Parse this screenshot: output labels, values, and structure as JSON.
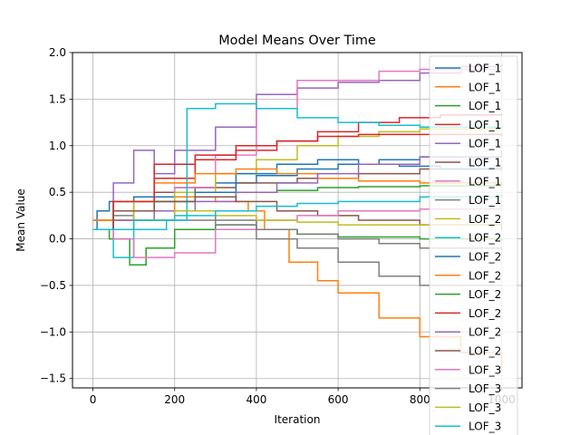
{
  "chart_data": {
    "type": "line",
    "title": "Model Means Over Time",
    "xlabel": "Iteration",
    "ylabel": "Mean Value",
    "xlim": [
      -50,
      1050
    ],
    "ylim": [
      -1.6,
      2.0
    ],
    "grid": true,
    "legend_position": "top-right",
    "x_ticks": [
      0,
      200,
      400,
      600,
      800,
      1000
    ],
    "x_tick_labels": [
      "0",
      "200",
      "400",
      "600",
      "800",
      "1000"
    ],
    "y_ticks": [
      -1.5,
      -1.0,
      -0.5,
      0.0,
      0.5,
      1.0,
      1.5,
      2.0
    ],
    "y_tick_labels": [
      "−1.5",
      "−1.0",
      "−0.5",
      "0.0",
      "0.5",
      "1.0",
      "1.5",
      "2.0"
    ],
    "series": [
      {
        "name": "LOF_1",
        "color": "#1f77b4",
        "points": [
          [
            0,
            0.1
          ],
          [
            10,
            0.3
          ],
          [
            40,
            0.4
          ],
          [
            100,
            0.45
          ],
          [
            200,
            0.55
          ],
          [
            300,
            0.6
          ],
          [
            400,
            0.68
          ],
          [
            500,
            0.75
          ],
          [
            600,
            0.8
          ],
          [
            700,
            0.85
          ],
          [
            800,
            0.88
          ],
          [
            1000,
            0.9
          ]
        ]
      },
      {
        "name": "LOF_1",
        "color": "#ff7f0e",
        "points": [
          [
            0,
            0.1
          ],
          [
            50,
            0.2
          ],
          [
            100,
            0.3
          ],
          [
            200,
            0.45
          ],
          [
            300,
            0.4
          ],
          [
            380,
            0.3
          ],
          [
            420,
            0.1
          ],
          [
            480,
            -0.25
          ],
          [
            550,
            -0.45
          ],
          [
            600,
            -0.58
          ],
          [
            700,
            -0.85
          ],
          [
            800,
            -1.05
          ],
          [
            900,
            -1.22
          ],
          [
            1000,
            -1.42
          ]
        ]
      },
      {
        "name": "LOF_1",
        "color": "#2ca02c",
        "points": [
          [
            0,
            0.1
          ],
          [
            40,
            0.0
          ],
          [
            90,
            -0.28
          ],
          [
            130,
            -0.1
          ],
          [
            200,
            0.1
          ],
          [
            300,
            0.15
          ],
          [
            400,
            0.1
          ],
          [
            500,
            0.05
          ],
          [
            600,
            0.02
          ],
          [
            800,
            0.0
          ],
          [
            1000,
            -0.02
          ]
        ]
      },
      {
        "name": "LOF_1",
        "color": "#d62728",
        "points": [
          [
            0,
            0.2
          ],
          [
            50,
            0.4
          ],
          [
            150,
            0.65
          ],
          [
            250,
            0.85
          ],
          [
            350,
            0.95
          ],
          [
            450,
            1.05
          ],
          [
            550,
            1.15
          ],
          [
            650,
            1.25
          ],
          [
            750,
            1.3
          ],
          [
            850,
            1.33
          ],
          [
            1000,
            1.35
          ]
        ]
      },
      {
        "name": "LOF_1",
        "color": "#9467bd",
        "points": [
          [
            0,
            0.1
          ],
          [
            50,
            0.6
          ],
          [
            100,
            0.95
          ],
          [
            150,
            0.7
          ],
          [
            200,
            0.95
          ],
          [
            300,
            1.2
          ],
          [
            400,
            1.55
          ],
          [
            500,
            1.62
          ],
          [
            600,
            1.68
          ],
          [
            700,
            1.7
          ],
          [
            800,
            1.78
          ],
          [
            900,
            1.85
          ],
          [
            1000,
            1.88
          ]
        ]
      },
      {
        "name": "LOF_1",
        "color": "#8c564b",
        "points": [
          [
            0,
            0.1
          ],
          [
            50,
            0.3
          ],
          [
            150,
            0.5
          ],
          [
            250,
            0.55
          ],
          [
            350,
            0.6
          ],
          [
            500,
            0.65
          ],
          [
            650,
            0.7
          ],
          [
            800,
            0.75
          ],
          [
            1000,
            0.78
          ]
        ]
      },
      {
        "name": "LOF_1",
        "color": "#e377c2",
        "points": [
          [
            0,
            0.1
          ],
          [
            50,
            0.2
          ],
          [
            100,
            0.4
          ],
          [
            200,
            0.55
          ],
          [
            300,
            0.9
          ],
          [
            400,
            1.4
          ],
          [
            500,
            1.7
          ],
          [
            600,
            1.7
          ],
          [
            700,
            1.8
          ],
          [
            800,
            1.82
          ],
          [
            1000,
            1.82
          ]
        ]
      },
      {
        "name": "LOF_1",
        "color": "#7f7f7f",
        "points": [
          [
            0,
            0.1
          ],
          [
            50,
            0.25
          ],
          [
            100,
            0.2
          ],
          [
            200,
            0.2
          ],
          [
            300,
            0.15
          ],
          [
            400,
            0.1
          ],
          [
            500,
            0.05
          ],
          [
            600,
            0.0
          ],
          [
            700,
            -0.05
          ],
          [
            800,
            -0.1
          ],
          [
            1000,
            -0.12
          ]
        ]
      },
      {
        "name": "LOF_2",
        "color": "#bcbd22",
        "points": [
          [
            0,
            0.2
          ],
          [
            100,
            0.4
          ],
          [
            200,
            0.5
          ],
          [
            300,
            0.7
          ],
          [
            400,
            0.85
          ],
          [
            500,
            1.0
          ],
          [
            600,
            1.1
          ],
          [
            700,
            1.15
          ],
          [
            800,
            1.18
          ],
          [
            1000,
            1.2
          ]
        ]
      },
      {
        "name": "LOF_2",
        "color": "#17becf",
        "points": [
          [
            0,
            0.1
          ],
          [
            50,
            -0.2
          ],
          [
            100,
            0.1
          ],
          [
            180,
            0.2
          ],
          [
            230,
            1.4
          ],
          [
            300,
            1.45
          ],
          [
            400,
            1.4
          ],
          [
            500,
            1.3
          ],
          [
            600,
            1.25
          ],
          [
            700,
            1.22
          ],
          [
            800,
            1.2
          ],
          [
            1000,
            1.18
          ]
        ]
      },
      {
        "name": "LOF_2",
        "color": "#1f77b4",
        "points": [
          [
            0,
            0.1
          ],
          [
            50,
            0.3
          ],
          [
            150,
            0.4
          ],
          [
            250,
            0.5
          ],
          [
            350,
            0.7
          ],
          [
            450,
            0.8
          ],
          [
            550,
            0.85
          ],
          [
            650,
            0.8
          ],
          [
            750,
            0.78
          ],
          [
            850,
            0.75
          ],
          [
            1000,
            0.75
          ]
        ]
      },
      {
        "name": "LOF_2",
        "color": "#ff7f0e",
        "points": [
          [
            0,
            0.2
          ],
          [
            50,
            0.4
          ],
          [
            150,
            0.6
          ],
          [
            250,
            0.7
          ],
          [
            350,
            0.75
          ],
          [
            450,
            0.7
          ],
          [
            550,
            0.65
          ],
          [
            650,
            0.62
          ],
          [
            800,
            0.6
          ],
          [
            1000,
            0.58
          ]
        ]
      },
      {
        "name": "LOF_2",
        "color": "#2ca02c",
        "points": [
          [
            0,
            0.1
          ],
          [
            50,
            0.3
          ],
          [
            150,
            0.4
          ],
          [
            250,
            0.45
          ],
          [
            350,
            0.5
          ],
          [
            450,
            0.52
          ],
          [
            550,
            0.55
          ],
          [
            650,
            0.56
          ],
          [
            800,
            0.57
          ],
          [
            1000,
            0.58
          ]
        ]
      },
      {
        "name": "LOF_2",
        "color": "#d62728",
        "points": [
          [
            0,
            0.1
          ],
          [
            50,
            0.4
          ],
          [
            150,
            0.8
          ],
          [
            250,
            0.9
          ],
          [
            350,
            1.0
          ],
          [
            450,
            1.05
          ],
          [
            550,
            1.1
          ],
          [
            650,
            1.12
          ],
          [
            800,
            1.12
          ],
          [
            1000,
            1.1
          ]
        ]
      },
      {
        "name": "LOF_2",
        "color": "#9467bd",
        "points": [
          [
            0,
            0.1
          ],
          [
            50,
            0.2
          ],
          [
            150,
            0.3
          ],
          [
            250,
            0.4
          ],
          [
            350,
            0.5
          ],
          [
            450,
            0.6
          ],
          [
            550,
            0.7
          ],
          [
            650,
            0.8
          ],
          [
            800,
            0.88
          ],
          [
            1000,
            0.95
          ]
        ]
      },
      {
        "name": "LOF_2",
        "color": "#8c564b",
        "points": [
          [
            0,
            0.1
          ],
          [
            50,
            0.3
          ],
          [
            150,
            0.4
          ],
          [
            250,
            0.45
          ],
          [
            350,
            0.4
          ],
          [
            450,
            0.3
          ],
          [
            550,
            0.25
          ],
          [
            650,
            0.2
          ],
          [
            800,
            0.15
          ],
          [
            1000,
            0.1
          ]
        ]
      },
      {
        "name": "LOF_3",
        "color": "#e377c2",
        "points": [
          [
            0,
            0.1
          ],
          [
            50,
            0.0
          ],
          [
            100,
            -0.2
          ],
          [
            200,
            -0.15
          ],
          [
            300,
            0.1
          ],
          [
            400,
            0.2
          ],
          [
            500,
            0.25
          ],
          [
            600,
            0.3
          ],
          [
            800,
            0.32
          ],
          [
            1000,
            0.35
          ]
        ]
      },
      {
        "name": "LOF_3",
        "color": "#7f7f7f",
        "points": [
          [
            0,
            0.1
          ],
          [
            100,
            0.2
          ],
          [
            200,
            0.3
          ],
          [
            300,
            0.2
          ],
          [
            400,
            0.0
          ],
          [
            500,
            -0.1
          ],
          [
            600,
            -0.25
          ],
          [
            700,
            -0.4
          ],
          [
            800,
            -0.5
          ],
          [
            1000,
            -0.5
          ]
        ]
      },
      {
        "name": "LOF_3",
        "color": "#bcbd22",
        "points": [
          [
            0,
            0.1
          ],
          [
            100,
            0.2
          ],
          [
            200,
            0.3
          ],
          [
            300,
            0.25
          ],
          [
            400,
            0.2
          ],
          [
            500,
            0.18
          ],
          [
            600,
            0.15
          ],
          [
            800,
            0.15
          ],
          [
            1000,
            0.15
          ]
        ]
      },
      {
        "name": "LOF_3",
        "color": "#17becf",
        "points": [
          [
            0,
            0.1
          ],
          [
            100,
            0.2
          ],
          [
            200,
            0.25
          ],
          [
            300,
            0.3
          ],
          [
            400,
            0.35
          ],
          [
            500,
            0.38
          ],
          [
            600,
            0.4
          ],
          [
            800,
            0.45
          ],
          [
            1000,
            0.48
          ]
        ]
      }
    ]
  }
}
